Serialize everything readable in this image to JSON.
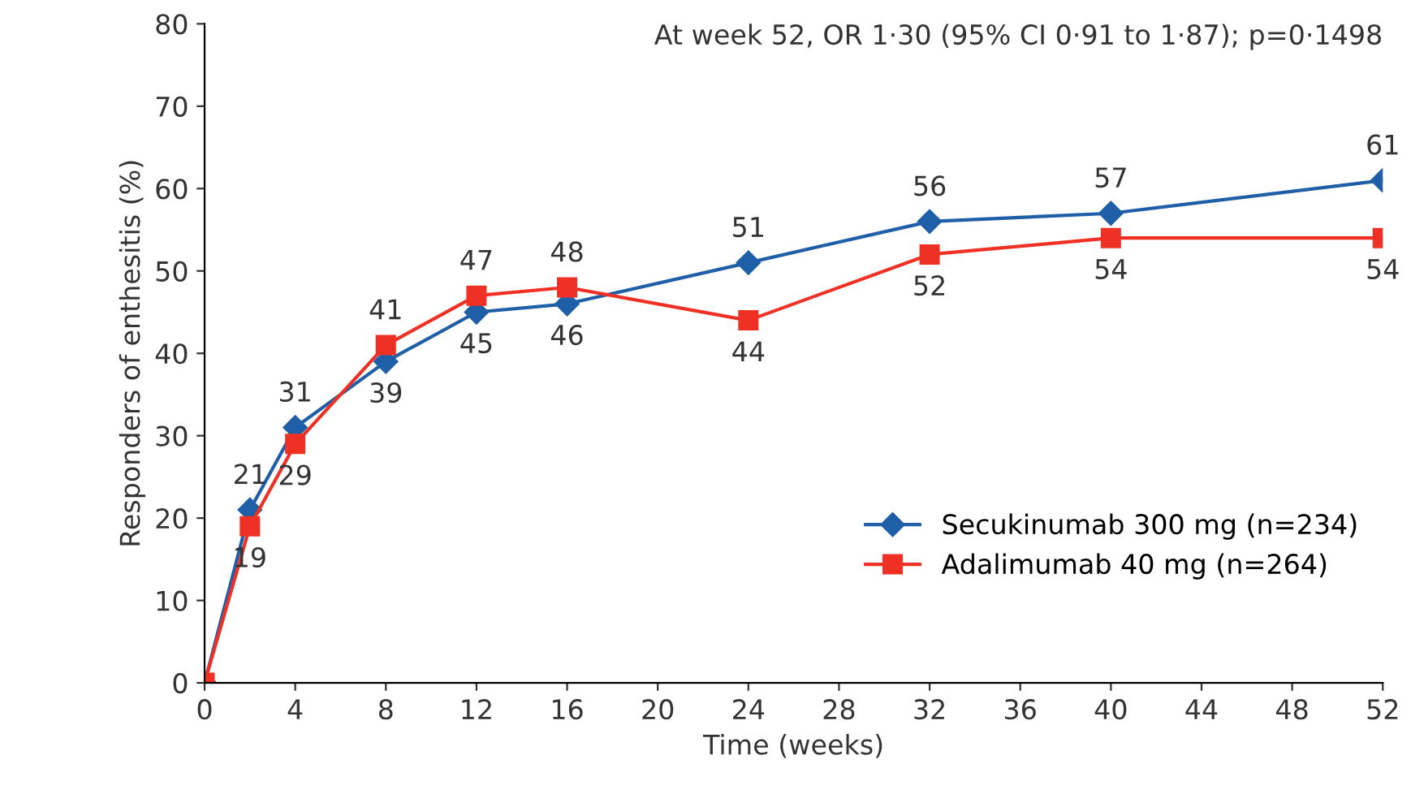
{
  "chart_data": {
    "type": "line",
    "xlabel": "Time (weeks)",
    "ylabel": "Responders of enthesitis (%)",
    "annotations": [
      "At week 52, OR 1·30 (95% CI 0·91 to 1·87); p=0·1498"
    ],
    "xlim": [
      0,
      52
    ],
    "xticks": [
      0,
      4,
      8,
      12,
      16,
      20,
      24,
      28,
      32,
      36,
      40,
      44,
      48,
      52
    ],
    "ylim": [
      0,
      80
    ],
    "yticks": [
      0,
      10,
      20,
      30,
      40,
      50,
      60,
      70,
      80
    ],
    "grid": false,
    "legend": "bottom right",
    "line_style": "solid",
    "series": [
      {
        "name": "Secukinumab 300 mg (n=234)",
        "color": "#1f5fa8",
        "marker": "diamond",
        "x": [
          0,
          2,
          4,
          8,
          12,
          16,
          24,
          32,
          40,
          52
        ],
        "values": [
          0,
          21,
          31,
          39,
          45,
          46,
          51,
          56,
          57,
          61
        ],
        "value_labels": [
          null,
          "21",
          "31",
          "39",
          "45",
          "46",
          "51",
          "56",
          "57",
          "61"
        ]
      },
      {
        "name": "Adalimumab 40 mg (n=264)",
        "color": "#ee3124",
        "marker": "square",
        "x": [
          0,
          2,
          4,
          8,
          12,
          16,
          24,
          32,
          40,
          52
        ],
        "values": [
          0,
          19,
          29,
          41,
          47,
          48,
          44,
          52,
          54,
          54
        ],
        "value_labels": [
          null,
          "19",
          "29",
          "41",
          "47",
          "48",
          "44",
          "52",
          "54",
          "54"
        ]
      }
    ]
  }
}
